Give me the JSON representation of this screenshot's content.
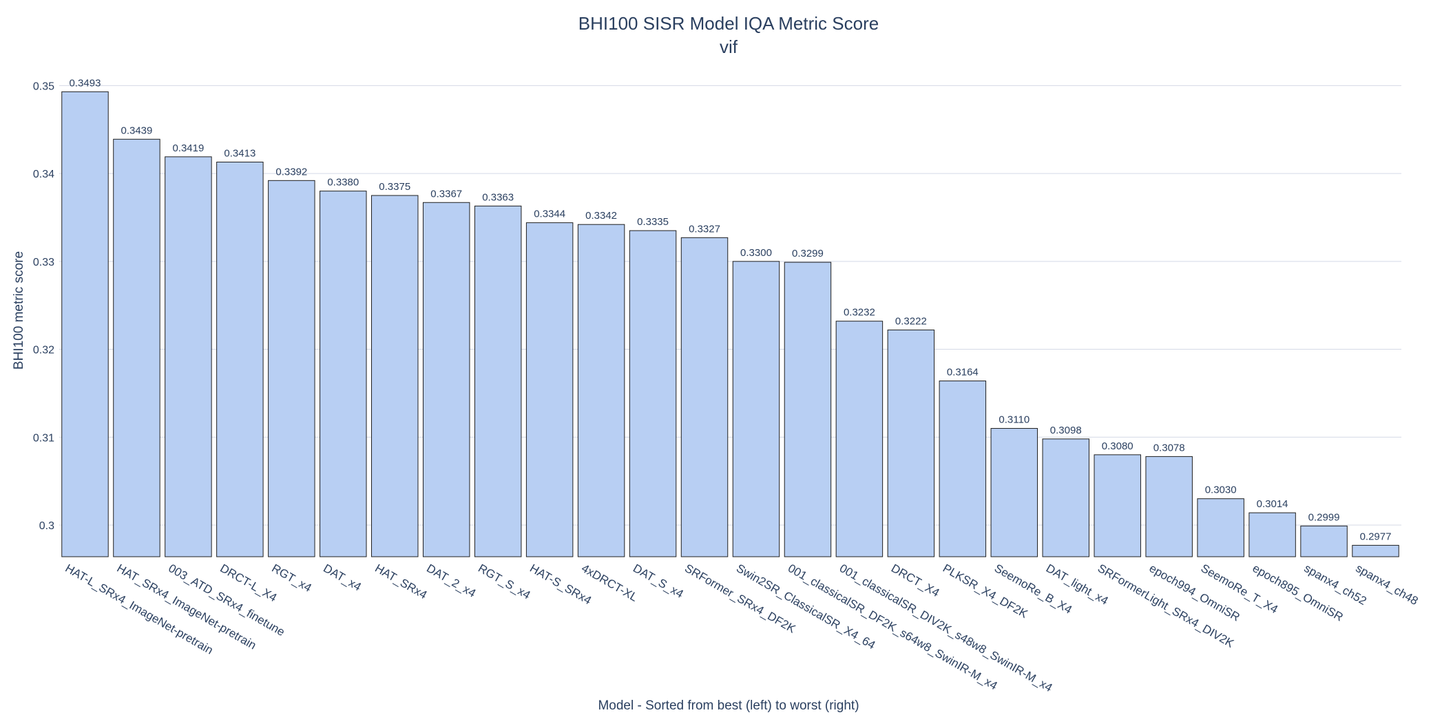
{
  "chart_data": {
    "type": "bar",
    "title": "BHI100 SISR Model IQA Metric Score",
    "subtitle": "vif",
    "xlabel": "Model - Sorted from best (left) to worst (right)",
    "ylabel": "BHI100 metric score",
    "ylim": [
      0.2964,
      0.3523
    ],
    "yticks": [
      0.3,
      0.31,
      0.32,
      0.33,
      0.34,
      0.35
    ],
    "ytick_labels": [
      "0.3",
      "0.31",
      "0.32",
      "0.33",
      "0.34",
      "0.35"
    ],
    "grid": true,
    "bar_color": "#b8cff3",
    "text_color": "#2a3f5f",
    "categories": [
      "HAT-L_SRx4_ImageNet-pretrain",
      "HAT_SRx4_ImageNet-pretrain",
      "003_ATD_SRx4_finetune",
      "DRCT-L_X4",
      "RGT_x4",
      "DAT_x4",
      "HAT_SRx4",
      "DAT_2_x4",
      "RGT_S_x4",
      "HAT-S_SRx4",
      "4xDRCT-XL",
      "DAT_S_x4",
      "SRFormer_SRx4_DF2K",
      "Swin2SR_ClassicalSR_X4_64",
      "001_classicalSR_DF2K_s64w8_SwinIR-M_x4",
      "001_classicalSR_DIV2K_s48w8_SwinIR-M_x4",
      "DRCT_X4",
      "PLKSR_X4_DF2K",
      "SeemoRe_B_X4",
      "DAT_light_x4",
      "SRFormerLight_SRx4_DIV2K",
      "epoch994_OmniSR",
      "SeemoRe_T_X4",
      "epoch895_OmniSR",
      "spanx4_ch52",
      "spanx4_ch48"
    ],
    "values": [
      0.3493,
      0.3439,
      0.3419,
      0.3413,
      0.3392,
      0.338,
      0.3375,
      0.3367,
      0.3363,
      0.3344,
      0.3342,
      0.3335,
      0.3327,
      0.33,
      0.3299,
      0.3232,
      0.3222,
      0.3164,
      0.311,
      0.3098,
      0.308,
      0.3078,
      0.303,
      0.3014,
      0.2999,
      0.2977
    ],
    "data_labels": [
      "0.3493",
      "0.3439",
      "0.3419",
      "0.3413",
      "0.3392",
      "0.3380",
      "0.3375",
      "0.3367",
      "0.3363",
      "0.3344",
      "0.3342",
      "0.3335",
      "0.3327",
      "0.3300",
      "0.3299",
      "0.3232",
      "0.3222",
      "0.3164",
      "0.3110",
      "0.3098",
      "0.3080",
      "0.3078",
      "0.3030",
      "0.3014",
      "0.2999",
      "0.2977"
    ]
  }
}
